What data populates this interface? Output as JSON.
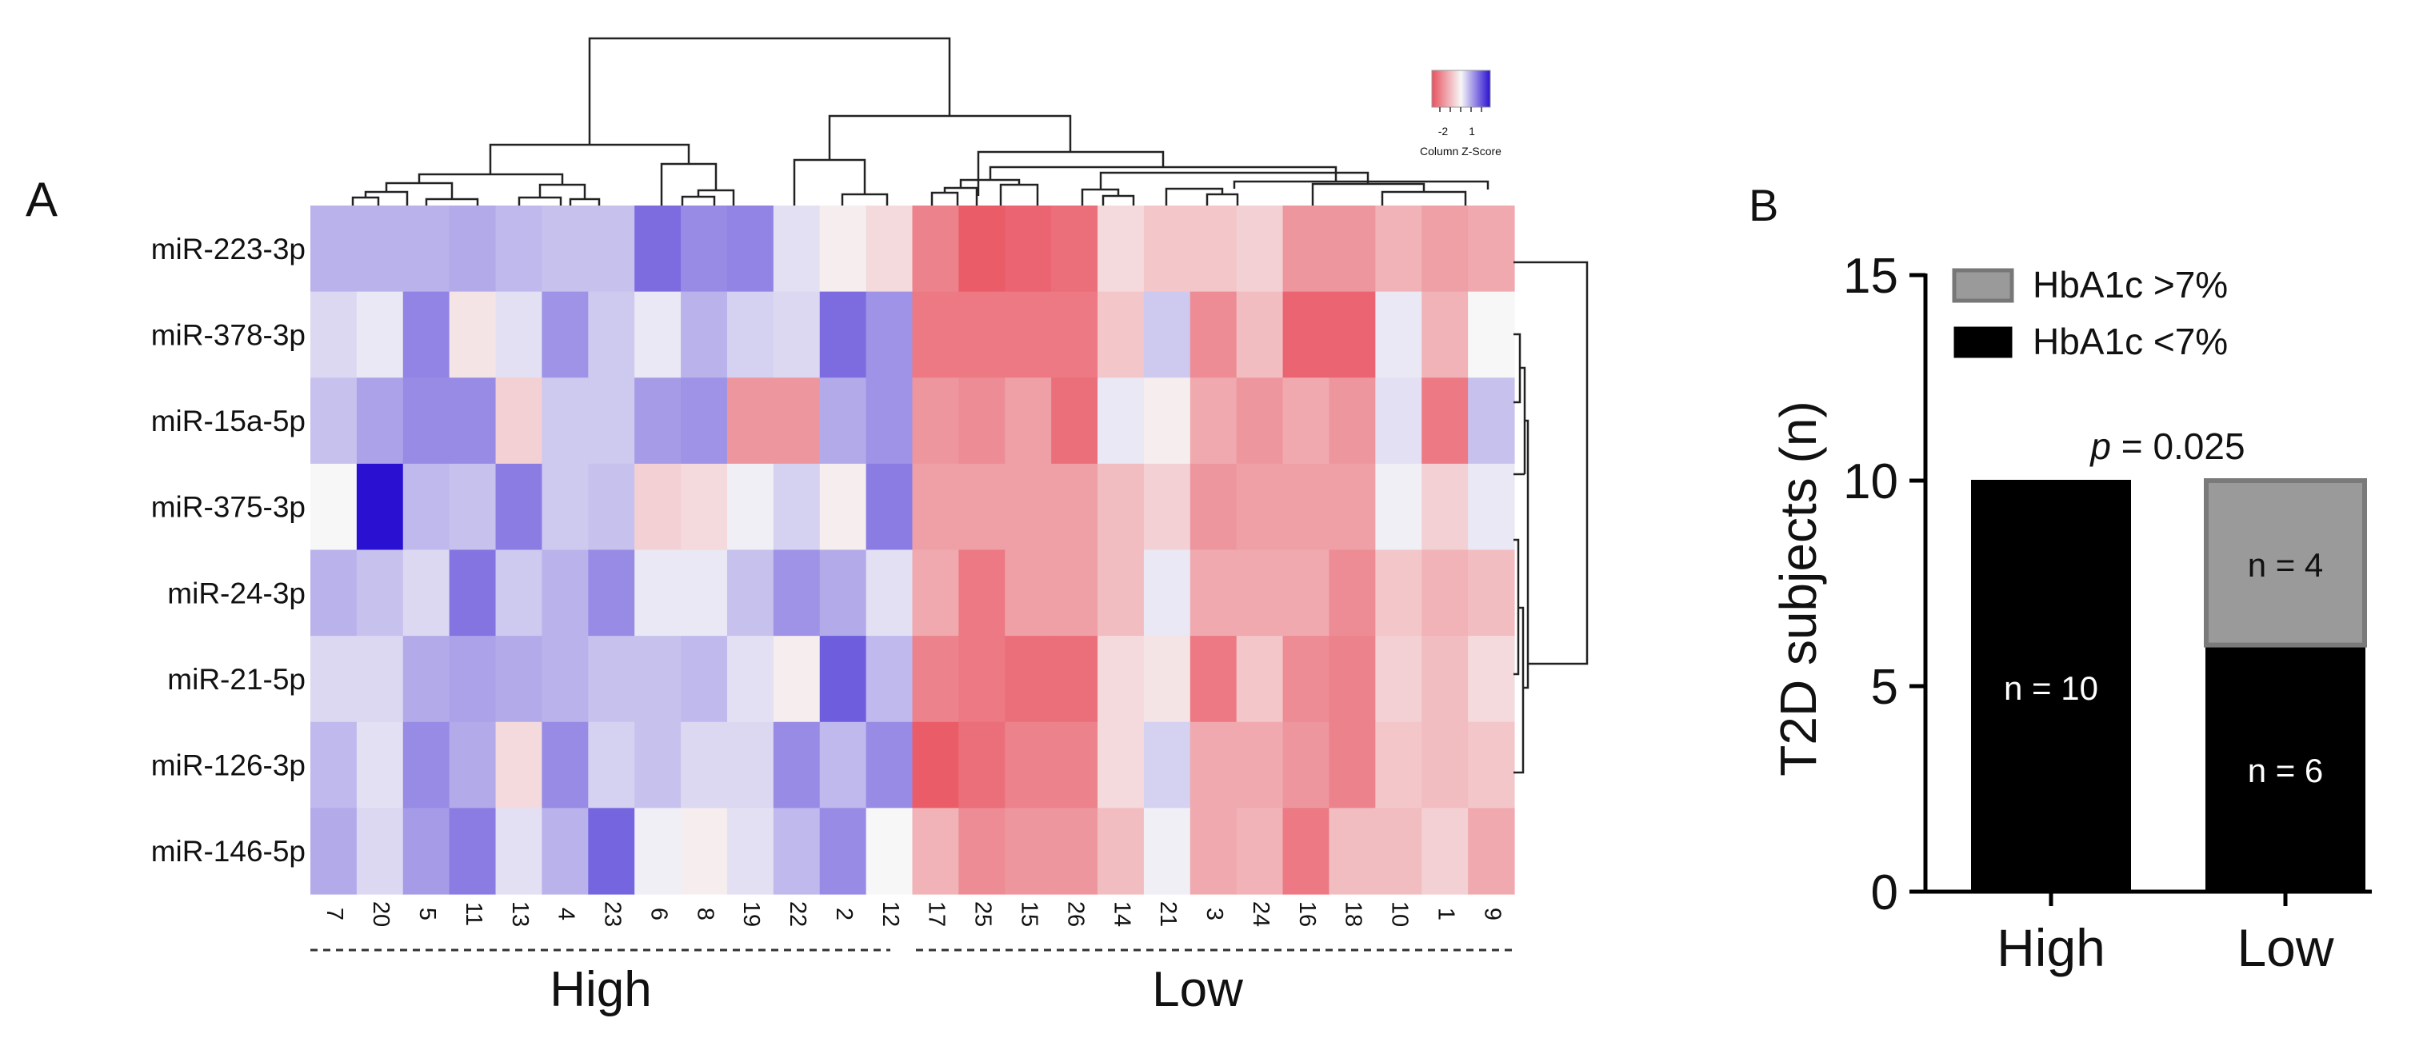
{
  "panels": {
    "a_label": "A",
    "b_label": "B"
  },
  "chart_data": [
    {
      "panel": "A",
      "type": "heatmap",
      "title": "",
      "legend": {
        "title": "Column Z-Score",
        "ticks": [
          -2,
          1
        ],
        "tick_labels": [
          "-2",
          "1"
        ],
        "colors": {
          "low": "#2a10d0",
          "mid": "#f7f7f7",
          "high": "#e8525f"
        },
        "placement": "top-right"
      },
      "rows": [
        "miR-223-3p",
        "miR-378-3p",
        "miR-15a-5p",
        "miR-375-3p",
        "miR-24-3p",
        "miR-21-5p",
        "miR-126-3p",
        "miR-146-5p"
      ],
      "columns": [
        "7",
        "20",
        "5",
        "11",
        "13",
        "4",
        "23",
        "6",
        "8",
        "19",
        "22",
        "2",
        "12",
        "17",
        "25",
        "15",
        "26",
        "14",
        "21",
        "3",
        "24",
        "16",
        "18",
        "10",
        "1",
        "9"
      ],
      "values": [
        [
          -0.9,
          -0.9,
          -0.9,
          -1.0,
          -0.8,
          -0.7,
          -0.7,
          -1.8,
          -1.4,
          -1.5,
          -0.3,
          0.1,
          0.3,
          1.2,
          1.6,
          1.5,
          1.4,
          0.3,
          0.5,
          0.5,
          0.4,
          1.0,
          1.0,
          0.7,
          0.9,
          0.8
        ],
        [
          -0.4,
          -0.2,
          -1.5,
          0.2,
          -0.3,
          -1.3,
          -0.6,
          -0.2,
          -0.9,
          -0.5,
          -0.4,
          -1.8,
          -1.3,
          1.3,
          1.3,
          1.3,
          1.3,
          0.5,
          -0.6,
          1.1,
          0.6,
          1.5,
          1.5,
          -0.2,
          0.7,
          0.0
        ],
        [
          -0.7,
          -1.1,
          -1.4,
          -1.4,
          0.4,
          -0.6,
          -0.6,
          -1.2,
          -1.3,
          1.0,
          1.0,
          -1.0,
          -1.3,
          1.0,
          1.1,
          0.9,
          1.4,
          -0.2,
          0.1,
          0.8,
          1.0,
          0.8,
          1.0,
          -0.3,
          1.3,
          -0.7
        ],
        [
          0.0,
          -3.0,
          -0.8,
          -0.7,
          -1.6,
          -0.6,
          -0.7,
          0.4,
          0.3,
          -0.1,
          -0.5,
          0.1,
          -1.6,
          0.9,
          0.9,
          0.9,
          0.9,
          0.6,
          0.4,
          1.0,
          0.9,
          0.9,
          0.9,
          -0.1,
          0.4,
          -0.2
        ],
        [
          -0.9,
          -0.7,
          -0.4,
          -1.7,
          -0.6,
          -0.9,
          -1.4,
          -0.2,
          -0.2,
          -0.7,
          -1.3,
          -1.0,
          -0.3,
          0.8,
          1.3,
          0.9,
          0.9,
          0.6,
          -0.2,
          0.8,
          0.8,
          0.8,
          1.1,
          0.5,
          0.7,
          0.6
        ],
        [
          -0.4,
          -0.4,
          -1.0,
          -1.1,
          -1.0,
          -0.9,
          -0.7,
          -0.7,
          -0.8,
          -0.3,
          0.1,
          -2.0,
          -0.8,
          1.2,
          1.3,
          1.4,
          1.4,
          0.3,
          0.2,
          1.3,
          0.5,
          1.1,
          1.2,
          0.4,
          0.6,
          0.3
        ],
        [
          -0.8,
          -0.3,
          -1.4,
          -1.0,
          0.3,
          -1.4,
          -0.5,
          -0.7,
          -0.4,
          -0.4,
          -1.4,
          -0.8,
          -1.4,
          1.6,
          1.4,
          1.2,
          1.2,
          0.3,
          -0.5,
          0.8,
          0.8,
          1.0,
          1.2,
          0.5,
          0.6,
          0.5
        ],
        [
          -1.0,
          -0.4,
          -1.2,
          -1.6,
          -0.3,
          -0.9,
          -1.9,
          -0.1,
          0.1,
          -0.3,
          -0.8,
          -1.4,
          0.0,
          0.7,
          1.1,
          1.0,
          1.0,
          0.6,
          -0.1,
          0.8,
          0.7,
          1.3,
          0.6,
          0.6,
          0.4,
          0.8
        ]
      ],
      "column_groups": [
        {
          "label": "High",
          "columns": [
            "7",
            "20",
            "5",
            "11",
            "13",
            "4",
            "23",
            "6",
            "8",
            "19",
            "22",
            "2",
            "12"
          ]
        },
        {
          "label": "Low",
          "columns": [
            "17",
            "25",
            "15",
            "26",
            "14",
            "21",
            "3",
            "24",
            "16",
            "18",
            "10",
            "1",
            "9"
          ]
        }
      ]
    },
    {
      "panel": "B",
      "type": "bar",
      "stacked": true,
      "title": "",
      "categories": [
        "High",
        "Low"
      ],
      "series": [
        {
          "name": "HbA1c <7%",
          "legend_label": "HbA1c <7%",
          "color": "#000000",
          "values": [
            10,
            6
          ],
          "bar_labels": [
            "n = 10",
            "n = 6"
          ]
        },
        {
          "name": "HbA1c >7%",
          "legend_label": "HbA1c >7%",
          "color": "#9a9a9a",
          "values": [
            0,
            4
          ],
          "bar_labels": [
            "",
            "n = 4"
          ]
        }
      ],
      "legend_order": [
        "HbA1c >7%",
        "HbA1c <7%"
      ],
      "xlabel": "",
      "ylabel": "T2D subjects (n)",
      "ylim": [
        0,
        15
      ],
      "yticks": [
        0,
        5,
        10,
        15
      ],
      "ytick_labels": [
        "0",
        "5",
        "10",
        "15"
      ],
      "annotation": {
        "italic_part": "p",
        "rest": " = 0.025"
      },
      "legend_placement": "top"
    }
  ]
}
